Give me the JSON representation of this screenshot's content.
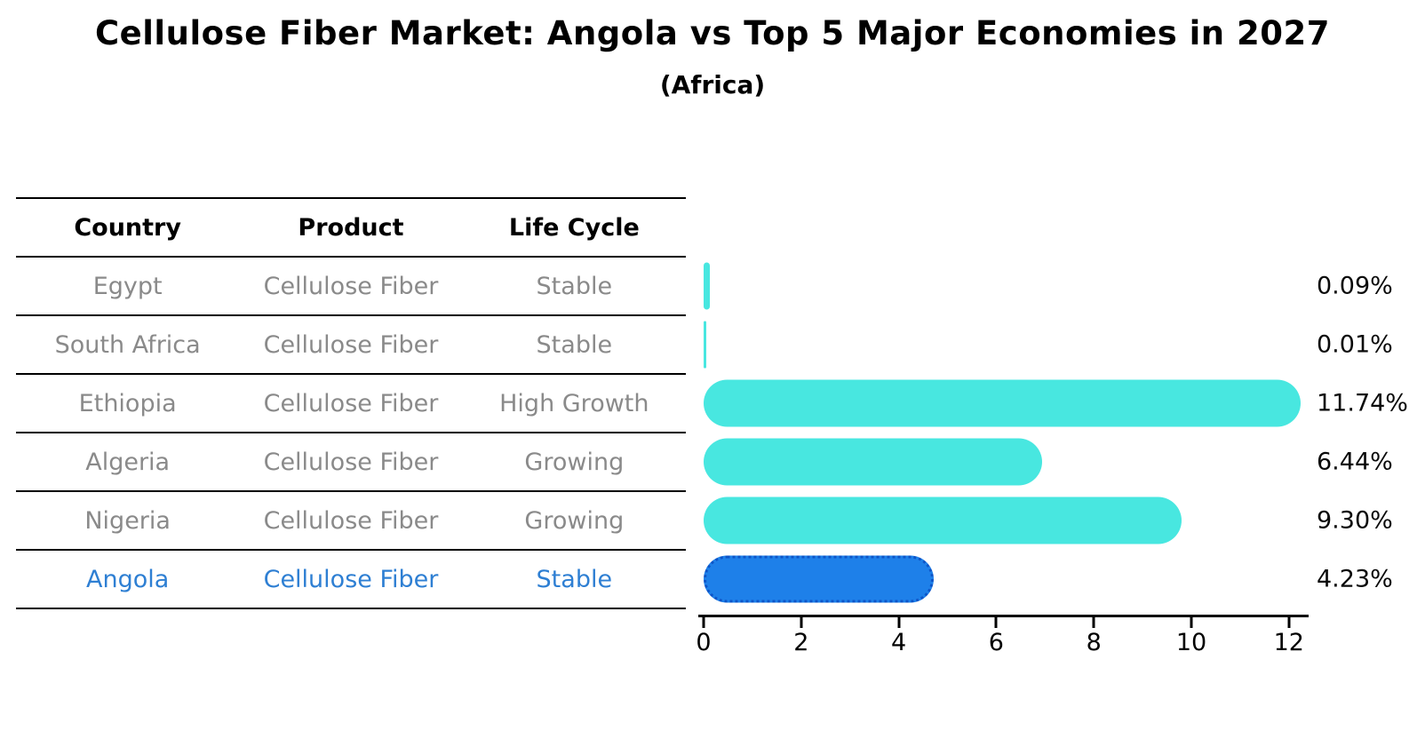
{
  "title": "Cellulose Fiber Market: Angola vs Top 5 Major Economies in 2027",
  "subtitle": "(Africa)",
  "table": {
    "headers": [
      "Country",
      "Product",
      "Life Cycle"
    ],
    "rows": [
      {
        "country": "Egypt",
        "product": "Cellulose Fiber",
        "life_cycle": "Stable",
        "highlight": false
      },
      {
        "country": "South Africa",
        "product": "Cellulose Fiber",
        "life_cycle": "Stable",
        "highlight": false
      },
      {
        "country": "Ethiopia",
        "product": "Cellulose Fiber",
        "life_cycle": "High Growth",
        "highlight": false
      },
      {
        "country": "Algeria",
        "product": "Cellulose Fiber",
        "life_cycle": "Growing",
        "highlight": false
      },
      {
        "country": "Nigeria",
        "product": "Cellulose Fiber",
        "life_cycle": "Growing",
        "highlight": false
      },
      {
        "country": "Angola",
        "product": "Cellulose Fiber",
        "life_cycle": "Stable",
        "highlight": true
      }
    ]
  },
  "chart_data": {
    "type": "bar",
    "orientation": "horizontal",
    "categories": [
      "Egypt",
      "South Africa",
      "Ethiopia",
      "Algeria",
      "Nigeria",
      "Angola"
    ],
    "values": [
      0.09,
      0.01,
      11.74,
      6.44,
      9.3,
      4.23
    ],
    "value_labels": [
      "0.09%",
      "0.01%",
      "11.74%",
      "6.44%",
      "9.30%",
      "4.23%"
    ],
    "highlight_index": 5,
    "xlim": [
      0,
      12
    ],
    "x_ticks": [
      0,
      2,
      4,
      6,
      8,
      10,
      12
    ],
    "grid": false,
    "legend": false,
    "bar_color_default": "#48e7e0",
    "bar_color_highlight": "#1e80e9",
    "highlight_border_color": "#0d55c8",
    "highlight_text_color": "#2e7fd3",
    "table_text_color": "#8a8a8a"
  }
}
